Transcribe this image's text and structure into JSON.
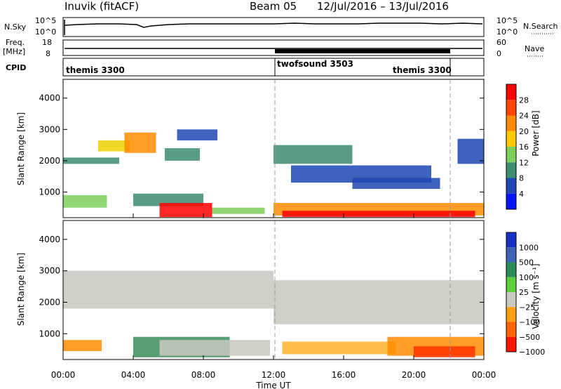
{
  "header": {
    "station": "Inuvik (fitACF)",
    "beam": "Beam 05",
    "dates": "12/Jul/2016 – 13/Jul/2016"
  },
  "strips": {
    "nsky_label": "N.Sky",
    "nsky_ticks": [
      "10^5",
      "10^0"
    ],
    "nsearch_label": "N.Search",
    "nsearch_ticks": [
      "10^5",
      "10^0"
    ],
    "freq_label": "Freq.",
    "freq_unit": "[MHz]",
    "freq_ticks": [
      "18",
      "8"
    ],
    "nave_label": "Nave",
    "nave_ticks": [
      "60",
      "0"
    ],
    "cpid_label": "CPID",
    "cpid_segments": [
      {
        "name": "themis 3300",
        "start_h": 0,
        "end_h": 12
      },
      {
        "name": "twofsound 3503",
        "start_h": 12,
        "end_h": 22
      },
      {
        "name": "themis 3300",
        "start_h": 22,
        "end_h": 24
      }
    ]
  },
  "chart_data": [
    {
      "type": "heatmap",
      "panel": "power",
      "ylabel": "Slant Range [km]",
      "xlim": [
        0,
        24
      ],
      "ylim": [
        180,
        4600
      ],
      "yticks": [
        1000,
        2000,
        3000,
        4000
      ],
      "colorbar_label": "Power [dB]",
      "colorbar_ticks": [
        "28",
        "24",
        "20",
        "16",
        "12",
        "8",
        "4"
      ],
      "colorbar_colors": [
        "#ff0000",
        "#ff4600",
        "#ff8c00",
        "#ffc800",
        "#7ad05a",
        "#3c8c6e",
        "#1e46b4",
        "#0014ff"
      ],
      "colors": {
        "low": "#1e46b4",
        "mid": "#3c8c6e",
        "green": "#7ad05a",
        "yellow": "#f0d000",
        "orange": "#ff8c00",
        "red": "#ff0000"
      },
      "bands": [
        {
          "t0": 0.0,
          "t1": 3.2,
          "r0": 1900,
          "r1": 2100,
          "level": "mid"
        },
        {
          "t0": 2.0,
          "t1": 3.8,
          "r0": 2300,
          "r1": 2650,
          "level": "yellow"
        },
        {
          "t0": 3.5,
          "t1": 5.3,
          "r0": 2250,
          "r1": 2900,
          "level": "orange"
        },
        {
          "t0": 5.8,
          "t1": 7.8,
          "r0": 2000,
          "r1": 2400,
          "level": "mid"
        },
        {
          "t0": 6.5,
          "t1": 8.8,
          "r0": 2650,
          "r1": 3000,
          "level": "low"
        },
        {
          "t0": 0.0,
          "t1": 2.5,
          "r0": 500,
          "r1": 900,
          "level": "green"
        },
        {
          "t0": 4.0,
          "t1": 8.0,
          "r0": 550,
          "r1": 950,
          "level": "mid"
        },
        {
          "t0": 5.5,
          "t1": 8.5,
          "r0": 200,
          "r1": 650,
          "level": "red"
        },
        {
          "t0": 8.5,
          "t1": 11.5,
          "r0": 300,
          "r1": 500,
          "level": "green"
        },
        {
          "t0": 12.0,
          "t1": 16.5,
          "r0": 1900,
          "r1": 2500,
          "level": "mid"
        },
        {
          "t0": 13.0,
          "t1": 21.0,
          "r0": 1300,
          "r1": 1850,
          "level": "low"
        },
        {
          "t0": 16.5,
          "t1": 21.5,
          "r0": 1100,
          "r1": 1450,
          "level": "low"
        },
        {
          "t0": 12.0,
          "t1": 24.0,
          "r0": 250,
          "r1": 650,
          "level": "orange"
        },
        {
          "t0": 12.5,
          "t1": 23.5,
          "r0": 200,
          "r1": 400,
          "level": "red"
        },
        {
          "t0": 22.5,
          "t1": 24.0,
          "r0": 1900,
          "r1": 2700,
          "level": "low"
        }
      ]
    },
    {
      "type": "heatmap",
      "panel": "velocity",
      "xlabel": "Time UT",
      "ylabel": "Slant Range [km]",
      "xlim": [
        0,
        24
      ],
      "ylim": [
        180,
        4600
      ],
      "yticks": [
        1000,
        2000,
        3000,
        4000
      ],
      "xticks": [
        "00:00",
        "04:00",
        "08:00",
        "12:00",
        "16:00",
        "20:00",
        "00:00"
      ],
      "colorbar_label": "Velocity [m s⁻¹]",
      "colorbar_ticks": [
        "1000",
        "500",
        "100",
        "25",
        "−25",
        "−100",
        "−500",
        "−1000"
      ],
      "colorbar_colors": [
        "#1432c8",
        "#3c64b4",
        "#2e8b57",
        "#5fd03c",
        "#c8c8c0",
        "#ffa014",
        "#ff6400",
        "#ff1400"
      ],
      "colors": {
        "ground": "#c8c8c0",
        "green": "#3c8c5a",
        "lightgreen": "#5fd03c",
        "orange": "#ff8c00",
        "amber": "#ffb428",
        "red": "#ff3200"
      },
      "bands": [
        {
          "t0": 0.0,
          "t1": 12.0,
          "r0": 1800,
          "r1": 3000,
          "level": "ground"
        },
        {
          "t0": 12.0,
          "t1": 24.0,
          "r0": 1300,
          "r1": 2700,
          "level": "ground"
        },
        {
          "t0": 0.0,
          "t1": 2.2,
          "r0": 450,
          "r1": 800,
          "level": "orange"
        },
        {
          "t0": 4.0,
          "t1": 9.5,
          "r0": 250,
          "r1": 900,
          "level": "green"
        },
        {
          "t0": 5.5,
          "t1": 11.8,
          "r0": 300,
          "r1": 800,
          "level": "ground"
        },
        {
          "t0": 12.5,
          "t1": 19.0,
          "r0": 350,
          "r1": 750,
          "level": "amber"
        },
        {
          "t0": 18.5,
          "t1": 24.0,
          "r0": 300,
          "r1": 900,
          "level": "orange"
        },
        {
          "t0": 20.0,
          "t1": 23.5,
          "r0": 250,
          "r1": 600,
          "level": "red"
        }
      ]
    }
  ]
}
